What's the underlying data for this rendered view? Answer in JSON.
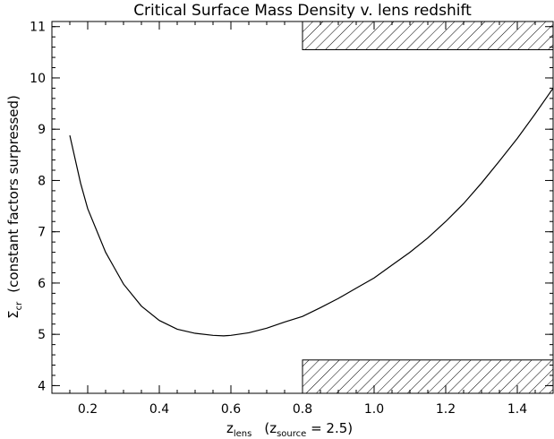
{
  "chart_data": {
    "type": "line",
    "title": "Critical Surface Mass Density v. lens redshift",
    "xlabel": {
      "main": "z",
      "main_sub": "lens",
      "paren_open": "(z",
      "paren_sub": "source",
      "paren_rest": " = 2.5)"
    },
    "ylabel": {
      "symbol": "Σ",
      "symbol_sub": "cr",
      "rest": "(constant factors surpressed)"
    },
    "xlim": [
      0.1,
      1.5
    ],
    "ylim": [
      3.85,
      11.1
    ],
    "xticks": [
      0.2,
      0.4,
      0.6,
      0.8,
      1.0,
      1.2,
      1.4
    ],
    "xtick_labels": [
      "0.2",
      "0.4",
      "0.6",
      "0.8",
      "1.0",
      "1.2",
      "1.4"
    ],
    "yticks": [
      4,
      5,
      6,
      7,
      8,
      9,
      10,
      11
    ],
    "ytick_labels": [
      "4",
      "5",
      "6",
      "7",
      "8",
      "9",
      "10",
      "11"
    ],
    "series": [
      {
        "x": [
          0.15,
          0.18,
          0.2,
          0.25,
          0.3,
          0.35,
          0.4,
          0.45,
          0.5,
          0.55,
          0.58,
          0.6,
          0.65,
          0.7,
          0.75,
          0.8,
          0.85,
          0.9,
          0.95,
          1.0,
          1.05,
          1.1,
          1.15,
          1.2,
          1.25,
          1.3,
          1.35,
          1.4,
          1.45,
          1.5
        ],
        "y": [
          8.88,
          7.95,
          7.45,
          6.6,
          5.98,
          5.55,
          5.27,
          5.1,
          5.02,
          4.98,
          4.97,
          4.98,
          5.03,
          5.12,
          5.24,
          5.35,
          5.52,
          5.7,
          5.9,
          6.1,
          6.35,
          6.6,
          6.88,
          7.2,
          7.55,
          7.95,
          8.38,
          8.82,
          9.3,
          9.8
        ]
      }
    ],
    "shaded_regions": [
      {
        "x": [
          0.8,
          1.5
        ],
        "y": [
          10.55,
          11.1
        ]
      },
      {
        "x": [
          0.8,
          1.5
        ],
        "y": [
          3.85,
          4.5
        ]
      }
    ],
    "grid": false
  }
}
